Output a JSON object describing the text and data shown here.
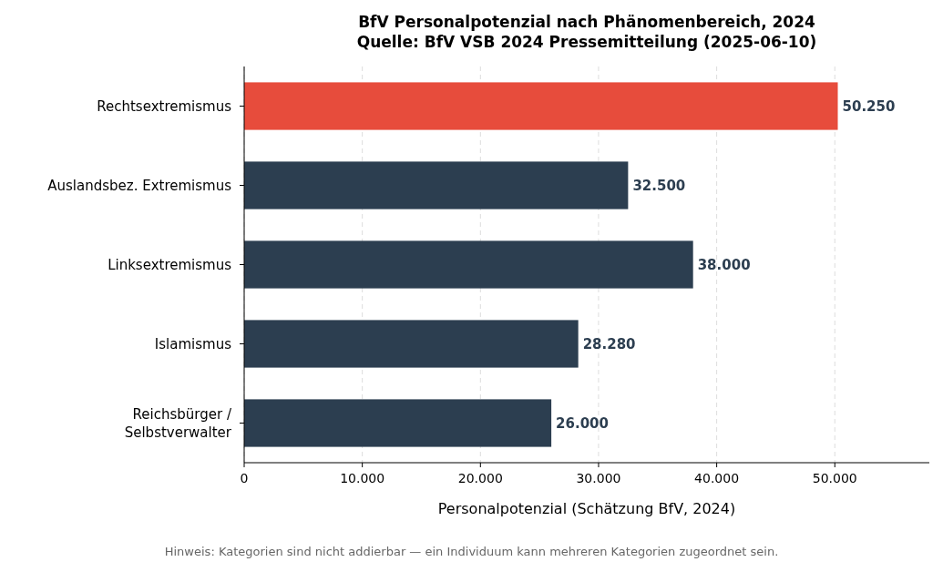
{
  "chart_data": {
    "type": "bar",
    "orientation": "horizontal",
    "title": "BfV Personalpotenzial nach Phänomenbereich, 2024",
    "subtitle": "Quelle: BfV VSB 2024 Pressemitteilung (2025-06-10)",
    "xlabel": "Personalpotenzial (Schätzung BfV, 2024)",
    "categories": [
      "Rechtsextremismus",
      "Auslandsbez. Extremismus",
      "Linksextremismus",
      "Islamismus",
      "Reichsbürger / Selbstverwalter"
    ],
    "values": [
      50250,
      32500,
      38000,
      28280,
      26000
    ],
    "colors": [
      "#e74c3c",
      "#2c3e50",
      "#2c3e50",
      "#2c3e50",
      "#2c3e50"
    ],
    "value_labels": [
      "50.250",
      "32.500",
      "38.000",
      "28.280",
      "26.000"
    ],
    "xlim": [
      0,
      58000
    ],
    "xticks": [
      {
        "value": 0,
        "label": "0"
      },
      {
        "value": 10000,
        "label": "10.000"
      },
      {
        "value": 20000,
        "label": "20.000"
      },
      {
        "value": 30000,
        "label": "30.000"
      },
      {
        "value": 40000,
        "label": "40.000"
      },
      {
        "value": 50000,
        "label": "50.000"
      }
    ],
    "grid": "x",
    "annotations": [
      "Hinweis: Kategorien sind nicht addierbar — ein Individuum kann mehreren Kategorien zugeordnet sein."
    ]
  }
}
